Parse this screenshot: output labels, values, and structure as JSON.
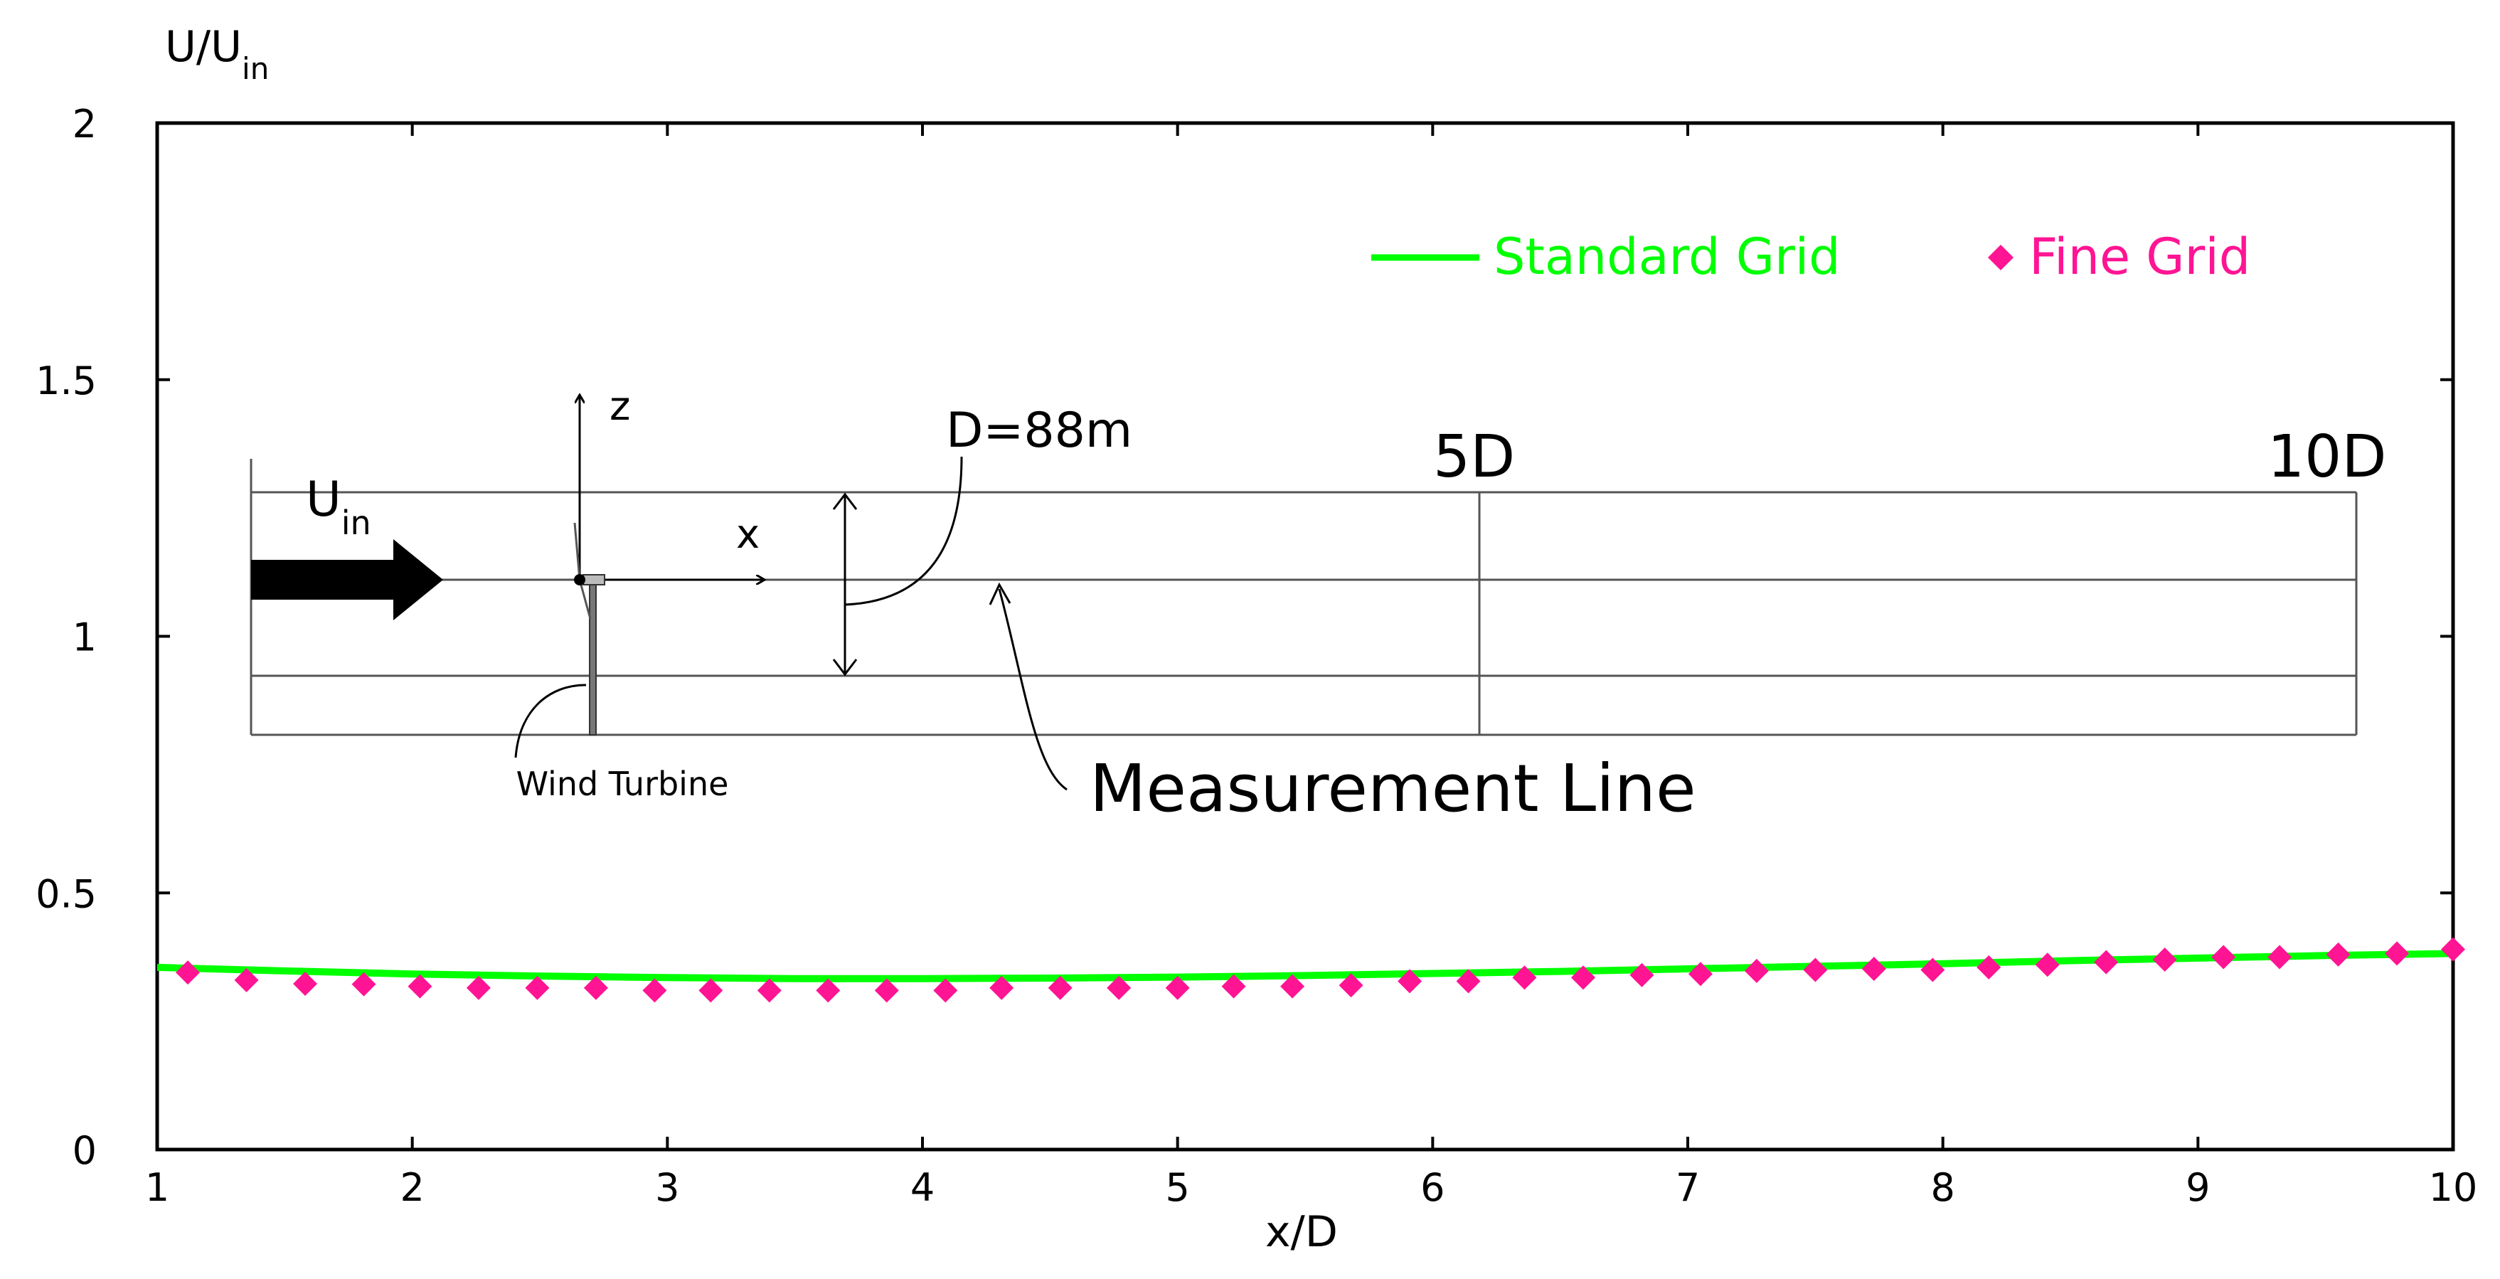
{
  "chart_data": {
    "type": "line",
    "xlabel": "x/D",
    "ylabel": "U/U",
    "ylabel_sub": "in",
    "xlim": [
      1,
      10
    ],
    "ylim": [
      0,
      2
    ],
    "xticks": [
      1,
      2,
      3,
      4,
      5,
      6,
      7,
      8,
      9,
      10
    ],
    "yticks": [
      0,
      0.5,
      1,
      1.5,
      2
    ],
    "ytick_labels": [
      "0",
      "0.5",
      "1",
      "1.5",
      "2"
    ],
    "legend_position": "top-right",
    "series": [
      {
        "name": "Standard Grid",
        "style": "line",
        "color": "#00ff00",
        "x": [
          1.0,
          1.5,
          2.0,
          2.5,
          3.0,
          3.5,
          4.0,
          4.5,
          5.0,
          5.5,
          6.0,
          6.5,
          7.0,
          7.5,
          8.0,
          8.5,
          9.0,
          9.5,
          10.0
        ],
        "y": [
          0.355,
          0.348,
          0.342,
          0.338,
          0.335,
          0.333,
          0.333,
          0.334,
          0.336,
          0.339,
          0.343,
          0.347,
          0.352,
          0.357,
          0.362,
          0.368,
          0.373,
          0.378,
          0.382
        ]
      },
      {
        "name": "Fine Grid",
        "style": "marker",
        "marker": "diamond",
        "color": "#ff1493",
        "x": [
          1.12,
          1.35,
          1.58,
          1.81,
          2.03,
          2.26,
          2.49,
          2.72,
          2.95,
          3.17,
          3.4,
          3.63,
          3.86,
          4.09,
          4.31,
          4.54,
          4.77,
          5.0,
          5.22,
          5.45,
          5.68,
          5.91,
          6.14,
          6.36,
          6.59,
          6.82,
          7.05,
          7.27,
          7.5,
          7.73,
          7.96,
          8.18,
          8.41,
          8.64,
          8.87,
          9.1,
          9.32,
          9.55,
          9.78,
          10.0
        ],
        "y": [
          0.345,
          0.33,
          0.323,
          0.322,
          0.318,
          0.315,
          0.315,
          0.315,
          0.31,
          0.31,
          0.31,
          0.31,
          0.31,
          0.31,
          0.315,
          0.315,
          0.315,
          0.315,
          0.318,
          0.318,
          0.32,
          0.328,
          0.328,
          0.335,
          0.335,
          0.34,
          0.342,
          0.348,
          0.35,
          0.352,
          0.35,
          0.355,
          0.36,
          0.365,
          0.37,
          0.375,
          0.375,
          0.38,
          0.382,
          0.39
        ]
      }
    ]
  },
  "diagram": {
    "inflow_label": "U",
    "inflow_sub": "in",
    "z_axis_label": "z",
    "x_axis_label": "x",
    "diameter_label": "D=88m",
    "mark_5d": "5D",
    "mark_10d": "10D",
    "turbine_label": "Wind Turbine",
    "measurement_label": "Measurement Line"
  }
}
